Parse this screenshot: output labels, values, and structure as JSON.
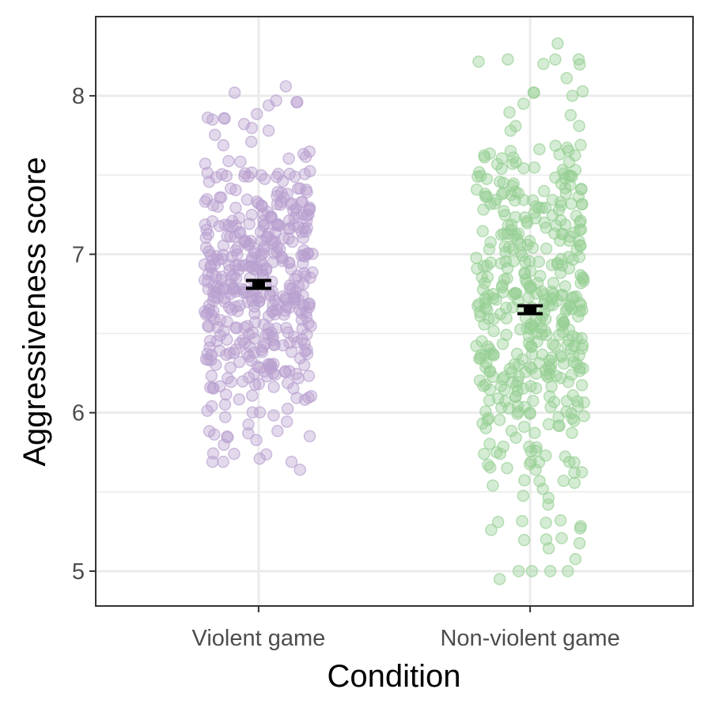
{
  "chart_data": {
    "type": "scatter",
    "xlabel": "Condition",
    "ylabel": "Aggressiveness score",
    "categories": [
      "Violent game",
      "Non-violent game"
    ],
    "ylim": [
      4.78,
      8.5
    ],
    "yticks": [
      5,
      6,
      7,
      8
    ],
    "grid": true,
    "legend": "none",
    "series": [
      {
        "category": "Violent game",
        "color": "#b89fd0",
        "mean": 6.81,
        "se": 0.025,
        "y_range": [
          5.64,
          8.06
        ],
        "n_points": 450,
        "notable_points": [
          8.06,
          8.02,
          7.97,
          7.94,
          7.86,
          7.85,
          5.74,
          5.71,
          5.69,
          5.64
        ]
      },
      {
        "category": "Non-violent game",
        "color": "#97cf94",
        "mean": 6.65,
        "se": 0.025,
        "y_range": [
          4.95,
          8.33
        ],
        "n_points": 450,
        "notable_points": [
          8.33,
          8.02,
          8.0,
          7.95,
          7.81,
          7.78,
          5.31,
          5.27,
          5.26,
          5.2,
          4.95
        ]
      }
    ]
  }
}
